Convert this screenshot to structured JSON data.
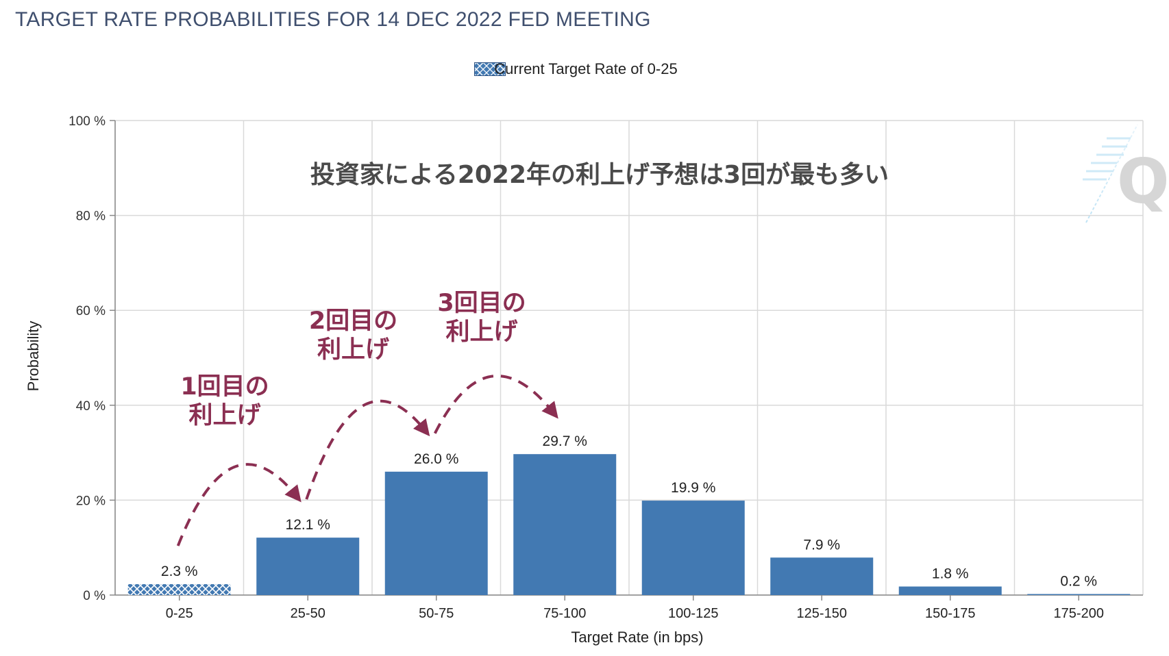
{
  "title": "TARGET RATE PROBABILITIES FOR 14 DEC 2022 FED MEETING",
  "legend_label": "Current Target Rate of 0-25",
  "colors": {
    "bar": "#4279b2",
    "current_bar": "#4279b2",
    "annotation": "#8b2f52",
    "title": "#3f4f6e"
  },
  "headline": "投資家による2022年の利上げ予想は3回が最も多い",
  "watermark": "Q",
  "annotations": [
    {
      "line1": "1回目の",
      "line2": "利上げ",
      "from": "0-25",
      "to": "25-50"
    },
    {
      "line1": "2回目の",
      "line2": "利上げ",
      "from": "25-50",
      "to": "50-75"
    },
    {
      "line1": "3回目の",
      "line2": "利上げ",
      "from": "50-75",
      "to": "75-100"
    }
  ],
  "chart_data": {
    "type": "bar",
    "title": "TARGET RATE PROBABILITIES FOR 14 DEC 2022 FED MEETING",
    "xlabel": "Target Rate (in bps)",
    "ylabel": "Probability",
    "categories": [
      "0-25",
      "25-50",
      "50-75",
      "75-100",
      "100-125",
      "125-150",
      "150-175",
      "175-200"
    ],
    "values": [
      2.3,
      12.1,
      26.0,
      29.7,
      19.9,
      7.9,
      1.8,
      0.2
    ],
    "value_labels": [
      "2.3 %",
      "12.1 %",
      "26.0 %",
      "29.7 %",
      "19.9 %",
      "7.9 %",
      "1.8 %",
      "0.2 %"
    ],
    "current_category": "0-25",
    "ylim": [
      0,
      100
    ],
    "yticks": [
      0,
      20,
      40,
      60,
      80,
      100
    ],
    "ytick_labels": [
      "0 %",
      "20 %",
      "40 %",
      "60 %",
      "80 %",
      "100 %"
    ],
    "grid": true,
    "legend": "top-center"
  }
}
